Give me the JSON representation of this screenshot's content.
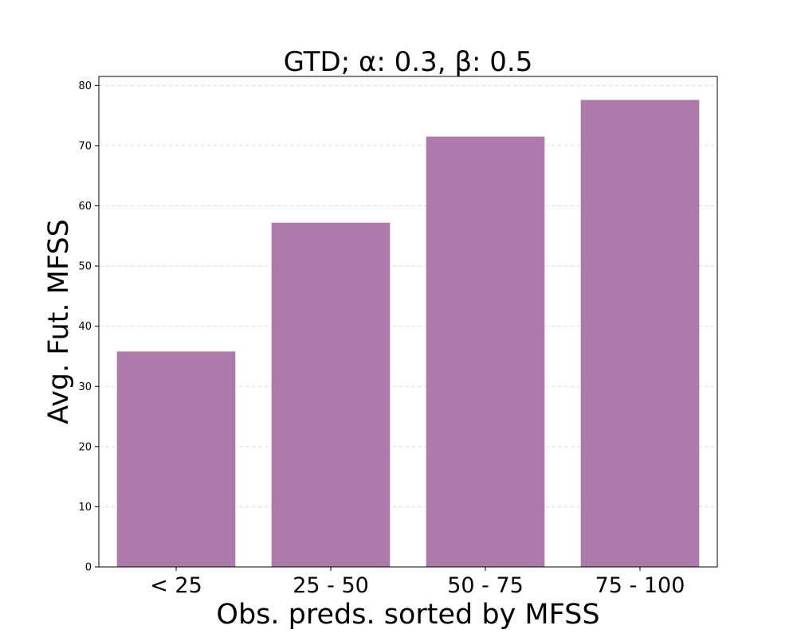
{
  "chart_data": {
    "type": "bar",
    "title": "GTD; α: 0.3, β: 0.5",
    "xlabel": "Obs. preds. sorted by MFSS",
    "ylabel": "Avg. Fut. MFSS",
    "categories": [
      "< 25",
      "25 - 50",
      "50 - 75",
      "75 - 100"
    ],
    "values": [
      35.8,
      57.2,
      71.5,
      77.6
    ],
    "ylim": [
      0,
      81.5
    ],
    "yticks": [
      0,
      10,
      20,
      30,
      40,
      50,
      60,
      70,
      80
    ],
    "grid": "horizontal, dashed",
    "legend": "none",
    "bar_color": "#ad7aaa",
    "grid_color": "#e0e0e0"
  }
}
